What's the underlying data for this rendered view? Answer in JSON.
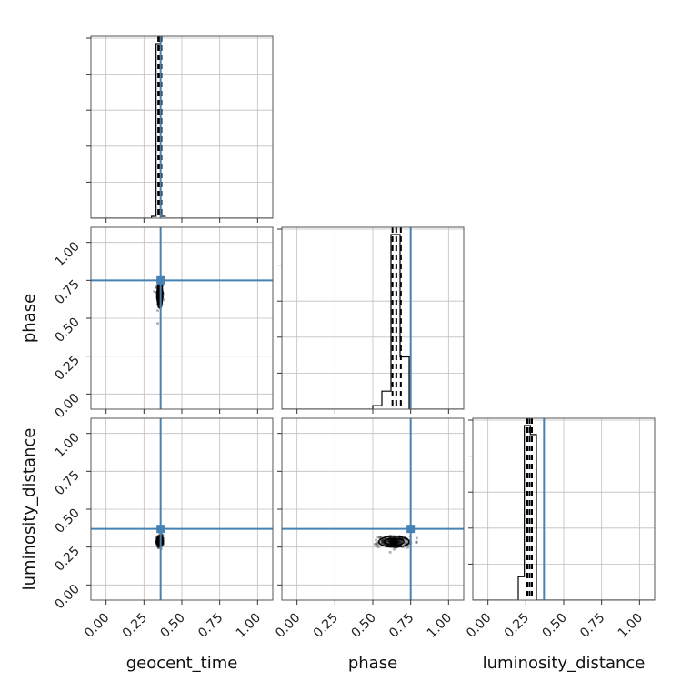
{
  "chart_data": {
    "type": "corner",
    "parameters": [
      "geocent_time",
      "phase",
      "luminosity_distance"
    ],
    "axis_labels": {
      "x": [
        "geocent_time",
        "phase",
        "luminosity_distance"
      ],
      "y": [
        "phase",
        "luminosity_distance"
      ]
    },
    "tick_labels": [
      "0.00",
      "0.25",
      "0.50",
      "0.75",
      "1.00"
    ],
    "tick_values": [
      0,
      0.25,
      0.5,
      0.75,
      1.0
    ],
    "axis_range": [
      -0.1,
      1.1
    ],
    "grid": true,
    "truth_color": "#4682b4",
    "truths": {
      "geocent_time": 0.36,
      "phase": 0.75,
      "luminosity_distance": 0.37
    },
    "histograms": [
      {
        "parameter": "geocent_time",
        "bin_edges": [
          0.3,
          0.33,
          0.36,
          0.39,
          0.43
        ],
        "counts": [
          0.01,
          0.97,
          0.01,
          0.0
        ],
        "quantiles": [
          0.345,
          0.355,
          0.365
        ],
        "ylim": [
          0,
          1.0
        ]
      },
      {
        "parameter": "phase",
        "bin_edges": [
          0.5,
          0.56,
          0.62,
          0.68,
          0.74,
          0.8
        ],
        "counts": [
          0.02,
          0.1,
          0.97,
          0.29,
          0.0
        ],
        "quantiles": [
          0.63,
          0.655,
          0.685
        ],
        "ylim": [
          0,
          1.0
        ]
      },
      {
        "parameter": "luminosity_distance",
        "bin_edges": [
          0.2,
          0.24,
          0.28,
          0.32,
          0.36
        ],
        "counts": [
          0.13,
          0.97,
          0.92,
          0.0
        ],
        "quantiles": [
          0.26,
          0.275,
          0.29
        ],
        "ylim": [
          0,
          1.0
        ]
      }
    ],
    "scatter_panels": [
      {
        "x_param": "geocent_time",
        "y_param": "phase",
        "center": [
          0.355,
          0.655
        ],
        "spread": [
          0.009,
          0.045
        ]
      },
      {
        "x_param": "geocent_time",
        "y_param": "luminosity_distance",
        "center": [
          0.355,
          0.29
        ],
        "spread": [
          0.01,
          0.018
        ]
      },
      {
        "x_param": "phase",
        "y_param": "luminosity_distance",
        "center": [
          0.64,
          0.285
        ],
        "spread": [
          0.05,
          0.018
        ]
      }
    ]
  }
}
